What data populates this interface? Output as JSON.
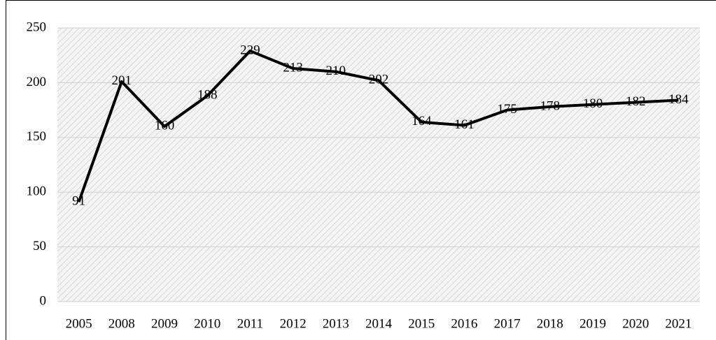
{
  "chart_data": {
    "type": "line",
    "categories": [
      "2005",
      "2008",
      "2009",
      "2010",
      "2011",
      "2012",
      "2013",
      "2014",
      "2015",
      "2016",
      "2017",
      "2018",
      "2019",
      "2020",
      "2021"
    ],
    "values": [
      91,
      201,
      160,
      188,
      229,
      213,
      210,
      202,
      164,
      161,
      175,
      178,
      180,
      182,
      184
    ],
    "color": "#000000",
    "ylim": [
      0,
      250
    ],
    "yticks": [
      0,
      50,
      100,
      150,
      200,
      250
    ],
    "grid": true
  }
}
